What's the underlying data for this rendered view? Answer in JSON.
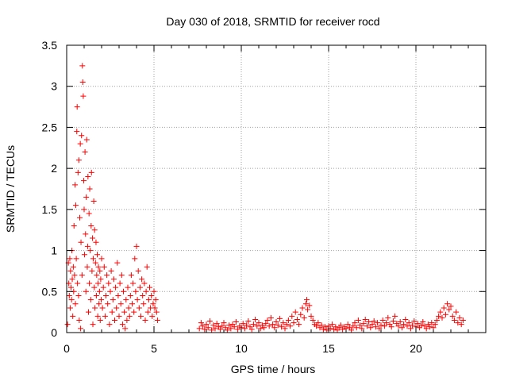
{
  "chart_data": {
    "type": "scatter",
    "title": "Day 030 of 2018, SRMTID for receiver rocd",
    "xlabel": "GPS time / hours",
    "ylabel": "SRMTID / TECUs",
    "xlim": [
      0,
      24
    ],
    "ylim": [
      0,
      3.5
    ],
    "grid": true,
    "marker": "+",
    "marker_color": "#ff0000",
    "x_ticks": [
      0,
      5,
      10,
      15,
      20
    ],
    "x_tick_labels": [
      "0",
      "5",
      "10",
      "15",
      "20"
    ],
    "y_ticks": [
      0,
      0.5,
      1,
      1.5,
      2,
      2.5,
      3,
      3.5
    ],
    "y_tick_labels": [
      "0",
      "0.5",
      "1",
      "1.5",
      "2",
      "2.5",
      "3",
      "3.5"
    ],
    "series": [
      {
        "name": "SRMTID",
        "points": [
          [
            0.05,
            0.1
          ],
          [
            0.1,
            0.85
          ],
          [
            0.12,
            0.6
          ],
          [
            0.15,
            0.45
          ],
          [
            0.18,
            0.9
          ],
          [
            0.2,
            0.3
          ],
          [
            0.22,
            0.75
          ],
          [
            0.25,
            0.55
          ],
          [
            0.28,
            0.4
          ],
          [
            0.3,
            1.0
          ],
          [
            0.32,
            0.65
          ],
          [
            0.35,
            0.2
          ],
          [
            0.38,
            0.8
          ],
          [
            0.4,
            0.5
          ],
          [
            0.42,
            1.3
          ],
          [
            0.45,
            0.7
          ],
          [
            0.48,
            1.8
          ],
          [
            0.5,
            0.35
          ],
          [
            0.52,
            1.55
          ],
          [
            0.55,
            0.9
          ],
          [
            0.58,
            2.45
          ],
          [
            0.6,
            2.75
          ],
          [
            0.62,
            0.6
          ],
          [
            0.65,
            1.95
          ],
          [
            0.68,
            0.45
          ],
          [
            0.7,
            2.1
          ],
          [
            0.72,
            0.15
          ],
          [
            0.75,
            1.4
          ],
          [
            0.78,
            2.3
          ],
          [
            0.8,
            0.05
          ],
          [
            0.82,
            1.1
          ],
          [
            0.85,
            2.4
          ],
          [
            0.88,
            0.7
          ],
          [
            0.9,
            3.25
          ],
          [
            0.92,
            3.05
          ],
          [
            0.95,
            2.88
          ],
          [
            0.98,
            1.85
          ],
          [
            1.0,
            1.5
          ],
          [
            1.02,
            0.95
          ],
          [
            1.05,
            2.2
          ],
          [
            1.08,
            1.2
          ],
          [
            1.1,
            0.5
          ],
          [
            1.12,
            1.65
          ],
          [
            1.15,
            2.35
          ],
          [
            1.18,
            0.8
          ],
          [
            1.2,
            1.05
          ],
          [
            1.22,
            1.9
          ],
          [
            1.25,
            0.25
          ],
          [
            1.28,
            1.45
          ],
          [
            1.3,
            0.6
          ],
          [
            1.32,
            1.75
          ],
          [
            1.35,
            1.0
          ],
          [
            1.38,
            0.4
          ],
          [
            1.4,
            1.3
          ],
          [
            1.42,
            1.95
          ],
          [
            1.45,
            0.75
          ],
          [
            1.48,
            1.15
          ],
          [
            1.5,
            0.1
          ],
          [
            1.52,
            0.9
          ],
          [
            1.55,
            1.6
          ],
          [
            1.58,
            0.55
          ],
          [
            1.6,
            1.25
          ],
          [
            1.62,
            0.3
          ],
          [
            1.65,
            0.85
          ],
          [
            1.68,
            1.1
          ],
          [
            1.7,
            0.45
          ],
          [
            1.72,
            0.7
          ],
          [
            1.75,
            0.95
          ],
          [
            1.78,
            0.2
          ],
          [
            1.8,
            0.6
          ],
          [
            1.82,
            0.8
          ],
          [
            1.85,
            0.35
          ],
          [
            1.88,
            0.5
          ],
          [
            1.9,
            0.75
          ],
          [
            1.92,
            0.15
          ],
          [
            1.95,
            0.65
          ],
          [
            1.98,
            0.4
          ],
          [
            2.0,
            0.9
          ],
          [
            2.05,
            0.3
          ],
          [
            2.1,
            0.55
          ],
          [
            2.15,
            0.8
          ],
          [
            2.2,
            0.2
          ],
          [
            2.25,
            0.45
          ],
          [
            2.3,
            0.7
          ],
          [
            2.35,
            0.35
          ],
          [
            2.4,
            0.6
          ],
          [
            2.45,
            0.1
          ],
          [
            2.5,
            0.5
          ],
          [
            2.55,
            0.75
          ],
          [
            2.6,
            0.25
          ],
          [
            2.65,
            0.4
          ],
          [
            2.7,
            0.65
          ],
          [
            2.75,
            0.15
          ],
          [
            2.8,
            0.55
          ],
          [
            2.85,
            0.3
          ],
          [
            2.9,
            0.85
          ],
          [
            2.95,
            0.45
          ],
          [
            3.0,
            0.2
          ],
          [
            3.05,
            0.6
          ],
          [
            3.1,
            0.35
          ],
          [
            3.15,
            0.7
          ],
          [
            3.2,
            0.1
          ],
          [
            3.25,
            0.5
          ],
          [
            3.3,
            0.25
          ],
          [
            3.35,
            0.05
          ],
          [
            3.4,
            0.4
          ],
          [
            3.45,
            0.15
          ],
          [
            3.5,
            0.55
          ],
          [
            3.55,
            0.3
          ],
          [
            3.6,
            0.2
          ],
          [
            3.65,
            0.45
          ],
          [
            3.7,
            0.7
          ],
          [
            3.75,
            0.35
          ],
          [
            3.8,
            0.6
          ],
          [
            3.85,
            0.25
          ],
          [
            3.9,
            0.9
          ],
          [
            3.95,
            0.5
          ],
          [
            4.0,
            1.05
          ],
          [
            4.05,
            0.4
          ],
          [
            4.1,
            0.75
          ],
          [
            4.15,
            0.3
          ],
          [
            4.2,
            0.55
          ],
          [
            4.25,
            0.2
          ],
          [
            4.3,
            0.65
          ],
          [
            4.35,
            0.45
          ],
          [
            4.4,
            0.35
          ],
          [
            4.45,
            0.6
          ],
          [
            4.5,
            0.15
          ],
          [
            4.55,
            0.5
          ],
          [
            4.6,
            0.8
          ],
          [
            4.65,
            0.25
          ],
          [
            4.7,
            0.4
          ],
          [
            4.75,
            0.55
          ],
          [
            4.8,
            0.3
          ],
          [
            4.85,
            0.45
          ],
          [
            4.9,
            0.2
          ],
          [
            4.95,
            0.35
          ],
          [
            5.0,
            0.5
          ],
          [
            5.05,
            0.3
          ],
          [
            5.1,
            0.4
          ],
          [
            5.15,
            0.25
          ],
          [
            5.2,
            0.15
          ],
          [
            7.6,
            0.05
          ],
          [
            7.7,
            0.12
          ],
          [
            7.8,
            0.08
          ],
          [
            7.9,
            0.04
          ],
          [
            8.0,
            0.1
          ],
          [
            8.1,
            0.06
          ],
          [
            8.2,
            0.14
          ],
          [
            8.3,
            0.03
          ],
          [
            8.4,
            0.09
          ],
          [
            8.5,
            0.05
          ],
          [
            8.6,
            0.11
          ],
          [
            8.7,
            0.07
          ],
          [
            8.8,
            0.04
          ],
          [
            8.9,
            0.08
          ],
          [
            9.0,
            0.12
          ],
          [
            9.1,
            0.06
          ],
          [
            9.2,
            0.03
          ],
          [
            9.3,
            0.09
          ],
          [
            9.4,
            0.05
          ],
          [
            9.5,
            0.1
          ],
          [
            9.6,
            0.07
          ],
          [
            9.7,
            0.13
          ],
          [
            9.8,
            0.04
          ],
          [
            9.9,
            0.08
          ],
          [
            10.0,
            0.06
          ],
          [
            10.1,
            0.11
          ],
          [
            10.2,
            0.05
          ],
          [
            10.3,
            0.09
          ],
          [
            10.4,
            0.14
          ],
          [
            10.5,
            0.07
          ],
          [
            10.6,
            0.04
          ],
          [
            10.7,
            0.1
          ],
          [
            10.8,
            0.16
          ],
          [
            10.9,
            0.08
          ],
          [
            11.0,
            0.12
          ],
          [
            11.1,
            0.05
          ],
          [
            11.2,
            0.09
          ],
          [
            11.3,
            0.06
          ],
          [
            11.4,
            0.11
          ],
          [
            11.5,
            0.15
          ],
          [
            11.6,
            0.08
          ],
          [
            11.7,
            0.18
          ],
          [
            11.8,
            0.1
          ],
          [
            11.9,
            0.06
          ],
          [
            12.0,
            0.13
          ],
          [
            12.1,
            0.09
          ],
          [
            12.2,
            0.17
          ],
          [
            12.3,
            0.07
          ],
          [
            12.4,
            0.12
          ],
          [
            12.5,
            0.05
          ],
          [
            12.6,
            0.1
          ],
          [
            12.7,
            0.15
          ],
          [
            12.8,
            0.08
          ],
          [
            12.9,
            0.2
          ],
          [
            13.0,
            0.12
          ],
          [
            13.1,
            0.25
          ],
          [
            13.2,
            0.16
          ],
          [
            13.3,
            0.1
          ],
          [
            13.4,
            0.22
          ],
          [
            13.5,
            0.3
          ],
          [
            13.6,
            0.18
          ],
          [
            13.7,
            0.35
          ],
          [
            13.75,
            0.4
          ],
          [
            13.8,
            0.28
          ],
          [
            13.9,
            0.33
          ],
          [
            14.0,
            0.2
          ],
          [
            14.1,
            0.15
          ],
          [
            14.2,
            0.1
          ],
          [
            14.3,
            0.08
          ],
          [
            14.4,
            0.12
          ],
          [
            14.5,
            0.06
          ],
          [
            14.6,
            0.09
          ],
          [
            14.7,
            0.04
          ],
          [
            14.8,
            0.07
          ],
          [
            14.9,
            0.03
          ],
          [
            15.0,
            0.08
          ],
          [
            15.1,
            0.05
          ],
          [
            15.2,
            0.1
          ],
          [
            15.3,
            0.04
          ],
          [
            15.4,
            0.07
          ],
          [
            15.5,
            0.03
          ],
          [
            15.6,
            0.06
          ],
          [
            15.7,
            0.09
          ],
          [
            15.8,
            0.04
          ],
          [
            15.9,
            0.07
          ],
          [
            16.0,
            0.05
          ],
          [
            16.1,
            0.1
          ],
          [
            16.2,
            0.06
          ],
          [
            16.3,
            0.03
          ],
          [
            16.4,
            0.08
          ],
          [
            16.5,
            0.12
          ],
          [
            16.6,
            0.06
          ],
          [
            16.7,
            0.15
          ],
          [
            16.8,
            0.09
          ],
          [
            16.9,
            0.05
          ],
          [
            17.0,
            0.11
          ],
          [
            17.1,
            0.16
          ],
          [
            17.2,
            0.08
          ],
          [
            17.3,
            0.13
          ],
          [
            17.4,
            0.06
          ],
          [
            17.5,
            0.1
          ],
          [
            17.6,
            0.14
          ],
          [
            17.7,
            0.07
          ],
          [
            17.8,
            0.12
          ],
          [
            17.9,
            0.05
          ],
          [
            18.0,
            0.09
          ],
          [
            18.1,
            0.15
          ],
          [
            18.2,
            0.08
          ],
          [
            18.3,
            0.12
          ],
          [
            18.4,
            0.18
          ],
          [
            18.5,
            0.1
          ],
          [
            18.6,
            0.07
          ],
          [
            18.7,
            0.14
          ],
          [
            18.8,
            0.2
          ],
          [
            18.9,
            0.11
          ],
          [
            19.0,
            0.08
          ],
          [
            19.1,
            0.13
          ],
          [
            19.2,
            0.06
          ],
          [
            19.3,
            0.1
          ],
          [
            19.4,
            0.16
          ],
          [
            19.5,
            0.08
          ],
          [
            19.6,
            0.12
          ],
          [
            19.7,
            0.05
          ],
          [
            19.8,
            0.09
          ],
          [
            19.9,
            0.14
          ],
          [
            20.0,
            0.07
          ],
          [
            20.1,
            0.11
          ],
          [
            20.2,
            0.06
          ],
          [
            20.3,
            0.09
          ],
          [
            20.4,
            0.13
          ],
          [
            20.5,
            0.08
          ],
          [
            20.6,
            0.05
          ],
          [
            20.7,
            0.1
          ],
          [
            20.8,
            0.07
          ],
          [
            20.9,
            0.12
          ],
          [
            21.0,
            0.06
          ],
          [
            21.1,
            0.1
          ],
          [
            21.2,
            0.15
          ],
          [
            21.3,
            0.2
          ],
          [
            21.4,
            0.25
          ],
          [
            21.5,
            0.18
          ],
          [
            21.6,
            0.3
          ],
          [
            21.7,
            0.22
          ],
          [
            21.8,
            0.35
          ],
          [
            21.9,
            0.28
          ],
          [
            22.0,
            0.32
          ],
          [
            22.1,
            0.2
          ],
          [
            22.2,
            0.15
          ],
          [
            22.3,
            0.25
          ],
          [
            22.4,
            0.12
          ],
          [
            22.5,
            0.18
          ],
          [
            22.6,
            0.1
          ],
          [
            22.7,
            0.15
          ]
        ]
      }
    ]
  }
}
